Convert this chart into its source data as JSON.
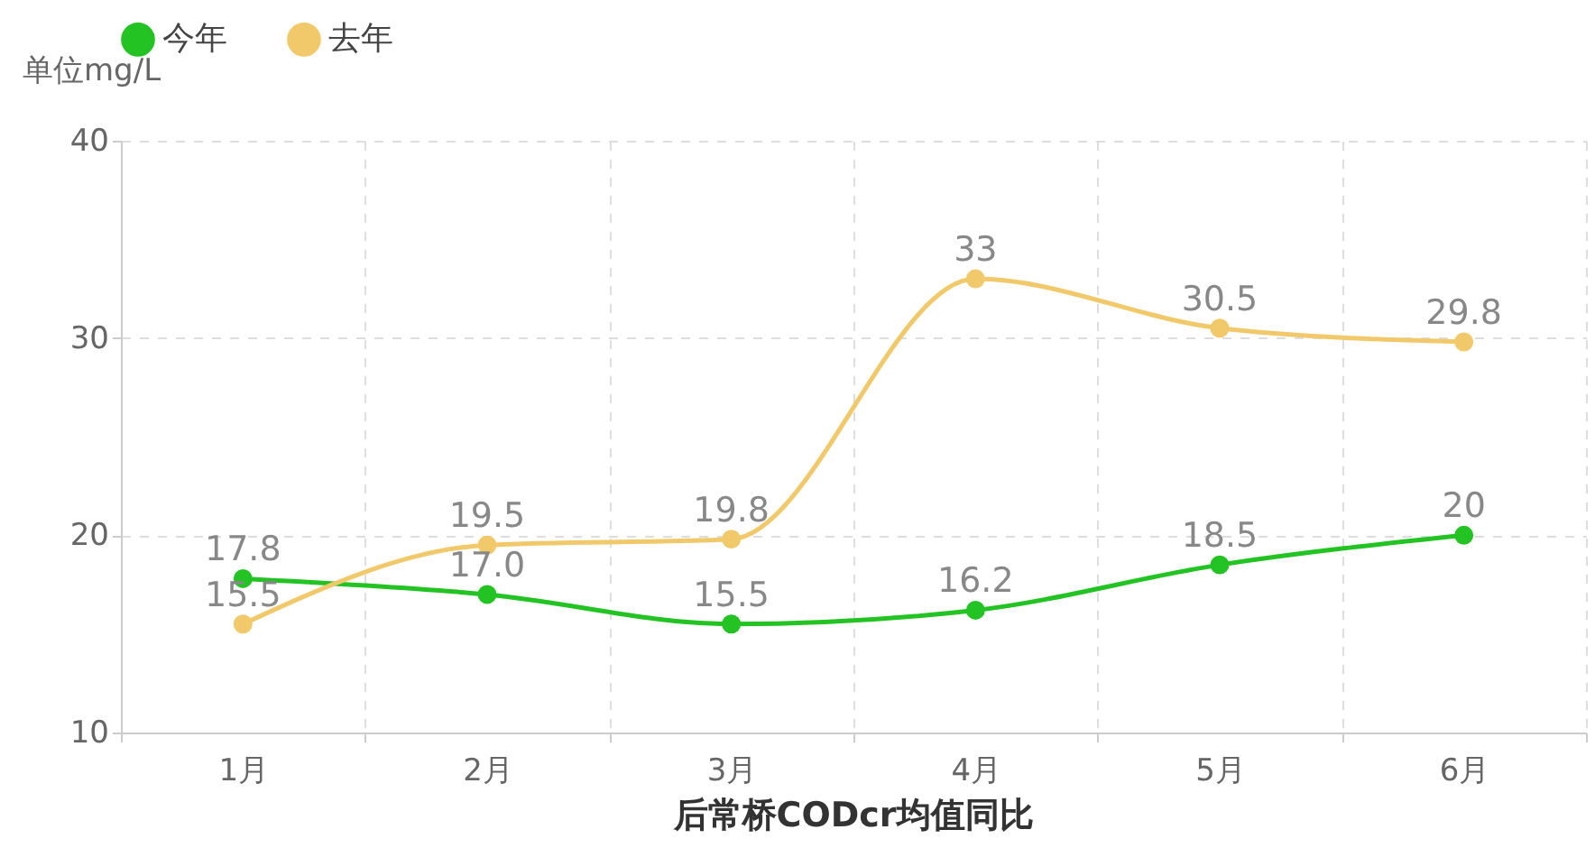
{
  "chart_data": {
    "type": "line",
    "title": "后常桥CODcr均值同比",
    "ylabel": "单位mg/L",
    "categories": [
      "1月",
      "2月",
      "3月",
      "4月",
      "5月",
      "6月"
    ],
    "series": [
      {
        "name": "今年",
        "color": "#22c322",
        "values": [
          17.8,
          17.0,
          15.5,
          16.2,
          18.5,
          20
        ],
        "value_labels": [
          "17.8",
          "17.0",
          "15.5",
          "16.2",
          "18.5",
          "20"
        ]
      },
      {
        "name": "去年",
        "color": "#f2c96a",
        "values": [
          15.5,
          19.5,
          19.8,
          33,
          30.5,
          29.8
        ],
        "value_labels": [
          "15.5",
          "19.5",
          "19.8",
          "33",
          "30.5",
          "29.8"
        ]
      }
    ],
    "ylim": [
      10,
      40
    ],
    "yticks": [
      10,
      20,
      30,
      40
    ],
    "grid": true,
    "legend": "top left",
    "marker": "circle",
    "line_style": "solid"
  }
}
